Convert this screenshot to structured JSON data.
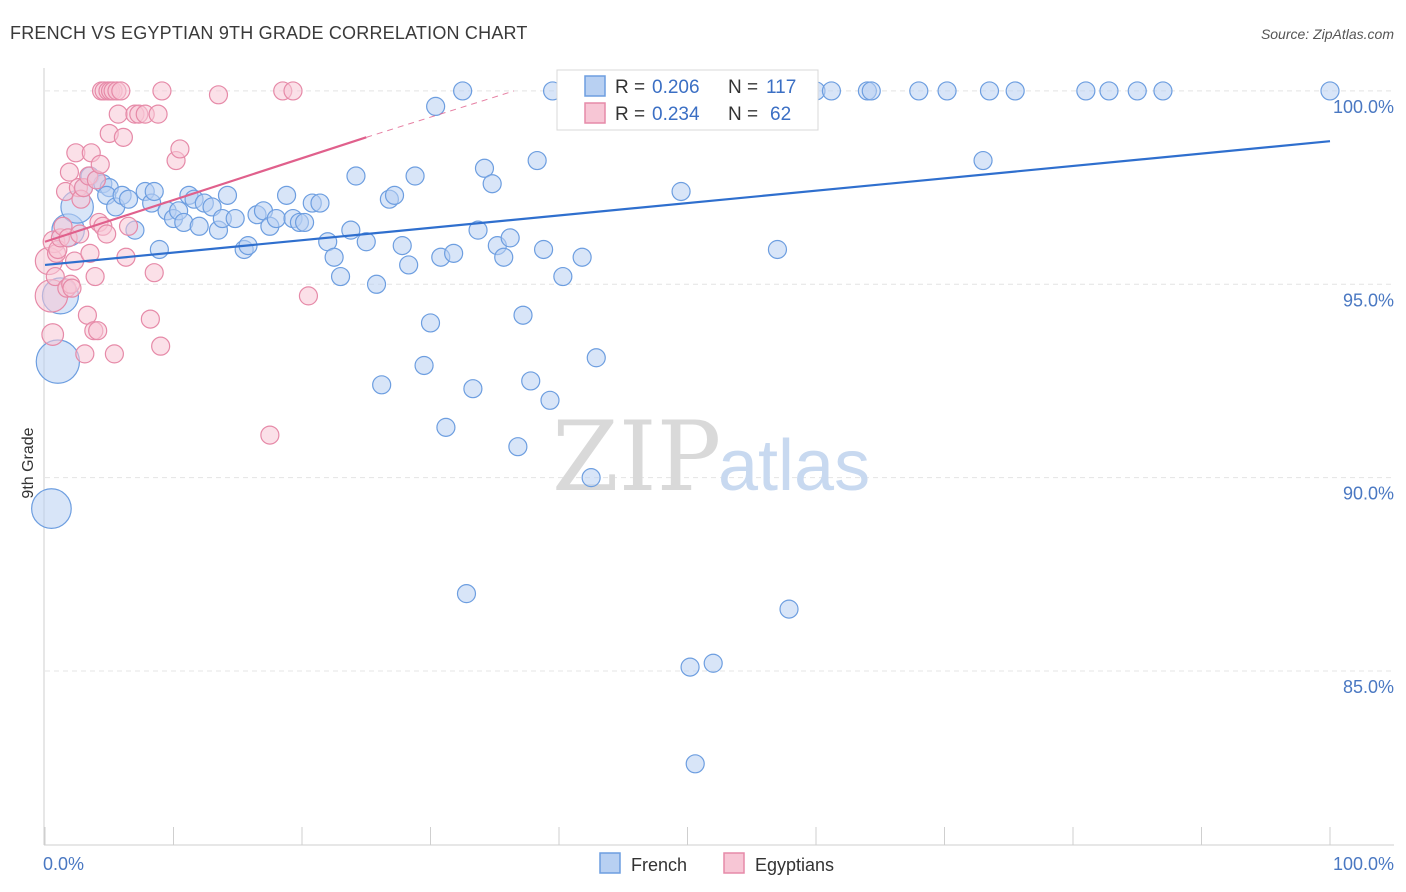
{
  "chart_data": {
    "type": "scatter",
    "title": "FRENCH VS EGYPTIAN 9TH GRADE CORRELATION CHART",
    "source": "Source: ZipAtlas.com",
    "xlabel": "",
    "ylabel": "9th Grade",
    "xlim": [
      0,
      100
    ],
    "ylim": [
      80.5,
      100.8
    ],
    "x_tick_labels": [
      "0.0%",
      "100.0%"
    ],
    "y_ticks": [
      85,
      90,
      95,
      100
    ],
    "y_tick_labels": [
      "85.0%",
      "90.0%",
      "95.0%",
      "100.0%"
    ],
    "grid": true,
    "watermark": {
      "zip": "ZIP",
      "atlas": "atlas"
    },
    "legend": {
      "position": "bottom-center",
      "entries": [
        "French",
        "Egyptians"
      ]
    },
    "stats_box": {
      "position": "top-center",
      "rows": [
        {
          "series": "French",
          "r_label": "R =",
          "r_value": "0.206",
          "n_label": "N =",
          "n_value": "117"
        },
        {
          "series": "Egyptians",
          "r_label": "R =",
          "r_value": "0.234",
          "n_label": "N =",
          "n_value": "62"
        }
      ]
    },
    "series": [
      {
        "name": "French",
        "color": "#6d9ee0",
        "fill": "#b8d0f2",
        "line_color": "#2f6fce",
        "trend": {
          "x": [
            0,
            100
          ],
          "y": [
            95.5,
            98.7
          ],
          "dashed_extension": false
        },
        "points": [
          [
            0.5,
            89.2,
            2.2
          ],
          [
            1.0,
            93.0,
            2.4
          ],
          [
            1.2,
            94.7,
            2.0
          ],
          [
            1.8,
            96.4,
            1.8
          ],
          [
            2.5,
            97.0,
            1.8
          ],
          [
            3.0,
            97.5,
            1.0
          ],
          [
            3.5,
            97.8,
            1.0
          ],
          [
            4.0,
            97.7,
            1.0
          ],
          [
            4.5,
            97.6,
            1.0
          ],
          [
            5.0,
            97.5,
            1.0
          ],
          [
            4.8,
            97.3,
            1.0
          ],
          [
            5.5,
            97.0,
            1.0
          ],
          [
            6.0,
            97.3,
            1.0
          ],
          [
            6.5,
            97.2,
            1.0
          ],
          [
            7.0,
            96.4,
            1.0
          ],
          [
            7.8,
            97.4,
            1.0
          ],
          [
            8.3,
            97.1,
            1.0
          ],
          [
            8.5,
            97.4,
            1.0
          ],
          [
            8.9,
            95.9,
            1.0
          ],
          [
            9.5,
            96.9,
            1.0
          ],
          [
            10.0,
            96.7,
            1.0
          ],
          [
            10.4,
            96.9,
            1.0
          ],
          [
            10.8,
            96.6,
            1.0
          ],
          [
            11.2,
            97.3,
            1.0
          ],
          [
            11.6,
            97.2,
            1.0
          ],
          [
            12.0,
            96.5,
            1.0
          ],
          [
            12.4,
            97.1,
            1.0
          ],
          [
            13.0,
            97.0,
            1.0
          ],
          [
            13.5,
            96.4,
            1.0
          ],
          [
            13.8,
            96.7,
            1.0
          ],
          [
            14.2,
            97.3,
            1.0
          ],
          [
            14.8,
            96.7,
            1.0
          ],
          [
            15.5,
            95.9,
            1.0
          ],
          [
            15.8,
            96.0,
            1.0
          ],
          [
            16.5,
            96.8,
            1.0
          ],
          [
            17.0,
            96.9,
            1.0
          ],
          [
            17.5,
            96.5,
            1.0
          ],
          [
            18.0,
            96.7,
            1.0
          ],
          [
            18.8,
            97.3,
            1.0
          ],
          [
            19.3,
            96.7,
            1.0
          ],
          [
            19.8,
            96.6,
            1.0
          ],
          [
            20.2,
            96.6,
            1.0
          ],
          [
            20.8,
            97.1,
            1.0
          ],
          [
            21.4,
            97.1,
            1.0
          ],
          [
            22.0,
            96.1,
            1.0
          ],
          [
            22.5,
            95.7,
            1.0
          ],
          [
            23.0,
            95.2,
            1.0
          ],
          [
            23.8,
            96.4,
            1.0
          ],
          [
            24.2,
            97.8,
            1.0
          ],
          [
            25.0,
            96.1,
            1.0
          ],
          [
            25.8,
            95.0,
            1.0
          ],
          [
            26.2,
            92.4,
            1.0
          ],
          [
            26.8,
            97.2,
            1.0
          ],
          [
            27.2,
            97.3,
            1.0
          ],
          [
            27.8,
            96.0,
            1.0
          ],
          [
            28.3,
            95.5,
            1.0
          ],
          [
            28.8,
            97.8,
            1.0
          ],
          [
            29.5,
            92.9,
            1.0
          ],
          [
            30.0,
            94.0,
            1.0
          ],
          [
            30.4,
            99.6,
            1.0
          ],
          [
            30.8,
            95.7,
            1.0
          ],
          [
            31.2,
            91.3,
            1.0
          ],
          [
            31.8,
            95.8,
            1.0
          ],
          [
            32.5,
            100.0,
            1.0
          ],
          [
            32.8,
            87.0,
            1.0
          ],
          [
            33.3,
            92.3,
            1.0
          ],
          [
            33.7,
            96.4,
            1.0
          ],
          [
            34.2,
            98.0,
            1.0
          ],
          [
            34.8,
            97.6,
            1.0
          ],
          [
            35.2,
            96.0,
            1.0
          ],
          [
            35.7,
            95.7,
            1.0
          ],
          [
            36.2,
            96.2,
            1.0
          ],
          [
            36.8,
            90.8,
            1.0
          ],
          [
            37.2,
            94.2,
            1.0
          ],
          [
            37.8,
            92.5,
            1.0
          ],
          [
            38.3,
            98.2,
            1.0
          ],
          [
            38.8,
            95.9,
            1.0
          ],
          [
            39.3,
            92.0,
            1.0
          ],
          [
            39.5,
            100.0,
            1.0
          ],
          [
            40.3,
            95.2,
            1.0
          ],
          [
            40.8,
            100.0,
            1.0
          ],
          [
            41.8,
            95.7,
            1.0
          ],
          [
            42.2,
            100.0,
            1.0
          ],
          [
            42.5,
            90.0,
            1.0
          ],
          [
            42.9,
            93.1,
            1.0
          ],
          [
            43.5,
            99.8,
            1.0
          ],
          [
            44.0,
            100.0,
            1.0
          ],
          [
            45.8,
            100.0,
            1.0
          ],
          [
            47.0,
            100.0,
            1.0
          ],
          [
            48.5,
            100.0,
            1.0
          ],
          [
            49.0,
            100.0,
            1.0
          ],
          [
            49.5,
            97.4,
            1.0
          ],
          [
            49.8,
            100.0,
            1.0
          ],
          [
            50.2,
            85.1,
            1.0
          ],
          [
            50.6,
            82.6,
            1.0
          ],
          [
            51.5,
            100.0,
            1.0
          ],
          [
            52.0,
            85.2,
            1.0
          ],
          [
            52.8,
            100.0,
            1.0
          ],
          [
            55.0,
            100.0,
            1.0
          ],
          [
            56.0,
            100.0,
            1.0
          ],
          [
            57.0,
            95.9,
            1.0
          ],
          [
            57.5,
            100.0,
            1.0
          ],
          [
            57.9,
            86.6,
            1.0
          ],
          [
            60.0,
            100.0,
            1.0
          ],
          [
            61.2,
            100.0,
            1.0
          ],
          [
            64.0,
            100.0,
            1.0
          ],
          [
            64.3,
            100.0,
            1.0
          ],
          [
            68.0,
            100.0,
            1.0
          ],
          [
            70.2,
            100.0,
            1.0
          ],
          [
            73.0,
            98.2,
            1.0
          ],
          [
            73.5,
            100.0,
            1.0
          ],
          [
            75.5,
            100.0,
            1.0
          ],
          [
            81.0,
            100.0,
            1.0
          ],
          [
            82.8,
            100.0,
            1.0
          ],
          [
            85.0,
            100.0,
            1.0
          ],
          [
            87.0,
            100.0,
            1.0
          ],
          [
            100.0,
            100.0,
            1.0
          ]
        ]
      },
      {
        "name": "Egyptians",
        "color": "#e68aa8",
        "fill": "#f7c6d5",
        "line_color": "#e0608c",
        "trend": {
          "x": [
            0,
            25
          ],
          "y": [
            96.1,
            98.8
          ],
          "dashed_extension": {
            "x": [
              25,
              36.5
            ],
            "y": [
              98.8,
              100.0
            ]
          }
        },
        "points": [
          [
            0.3,
            95.6,
            1.5
          ],
          [
            0.5,
            94.7,
            1.8
          ],
          [
            0.6,
            93.7,
            1.2
          ],
          [
            0.7,
            96.1,
            1.2
          ],
          [
            0.8,
            95.2,
            1.0
          ],
          [
            0.9,
            95.8,
            1.0
          ],
          [
            1.0,
            95.9,
            1.0
          ],
          [
            1.2,
            96.2,
            1.0
          ],
          [
            1.4,
            96.5,
            1.0
          ],
          [
            1.6,
            97.4,
            1.0
          ],
          [
            1.7,
            94.9,
            1.0
          ],
          [
            1.8,
            96.2,
            1.0
          ],
          [
            1.9,
            97.9,
            1.0
          ],
          [
            2.0,
            95.0,
            1.0
          ],
          [
            2.1,
            94.9,
            1.0
          ],
          [
            2.3,
            95.6,
            1.0
          ],
          [
            2.4,
            98.4,
            1.0
          ],
          [
            2.6,
            97.5,
            1.0
          ],
          [
            2.7,
            96.3,
            1.0
          ],
          [
            2.8,
            97.2,
            1.0
          ],
          [
            3.0,
            97.5,
            1.0
          ],
          [
            3.1,
            93.2,
            1.0
          ],
          [
            3.3,
            94.2,
            1.0
          ],
          [
            3.4,
            97.8,
            1.0
          ],
          [
            3.5,
            95.8,
            1.0
          ],
          [
            3.6,
            98.4,
            1.0
          ],
          [
            3.8,
            93.8,
            1.0
          ],
          [
            3.9,
            95.2,
            1.0
          ],
          [
            4.0,
            97.7,
            1.0
          ],
          [
            4.1,
            93.8,
            1.0
          ],
          [
            4.2,
            96.6,
            1.0
          ],
          [
            4.3,
            98.1,
            1.0
          ],
          [
            4.4,
            100.0,
            1.0
          ],
          [
            4.5,
            96.5,
            1.0
          ],
          [
            4.6,
            100.0,
            1.0
          ],
          [
            4.8,
            96.3,
            1.0
          ],
          [
            4.9,
            100.0,
            1.0
          ],
          [
            5.0,
            98.9,
            1.0
          ],
          [
            5.1,
            100.0,
            1.0
          ],
          [
            5.3,
            100.0,
            1.0
          ],
          [
            5.4,
            93.2,
            1.0
          ],
          [
            5.6,
            100.0,
            1.0
          ],
          [
            5.7,
            99.4,
            1.0
          ],
          [
            5.9,
            100.0,
            1.0
          ],
          [
            6.1,
            98.8,
            1.0
          ],
          [
            6.3,
            95.7,
            1.0
          ],
          [
            6.5,
            96.5,
            1.0
          ],
          [
            7.0,
            99.4,
            1.0
          ],
          [
            7.3,
            99.4,
            1.0
          ],
          [
            7.8,
            99.4,
            1.0
          ],
          [
            8.2,
            94.1,
            1.0
          ],
          [
            8.5,
            95.3,
            1.0
          ],
          [
            8.8,
            99.4,
            1.0
          ],
          [
            9.0,
            93.4,
            1.0
          ],
          [
            9.1,
            100.0,
            1.0
          ],
          [
            10.2,
            98.2,
            1.0
          ],
          [
            10.5,
            98.5,
            1.0
          ],
          [
            13.5,
            99.9,
            1.0
          ],
          [
            17.5,
            91.1,
            1.0
          ],
          [
            18.5,
            100.0,
            1.0
          ],
          [
            19.3,
            100.0,
            1.0
          ],
          [
            20.5,
            94.7,
            1.0
          ]
        ]
      }
    ]
  }
}
